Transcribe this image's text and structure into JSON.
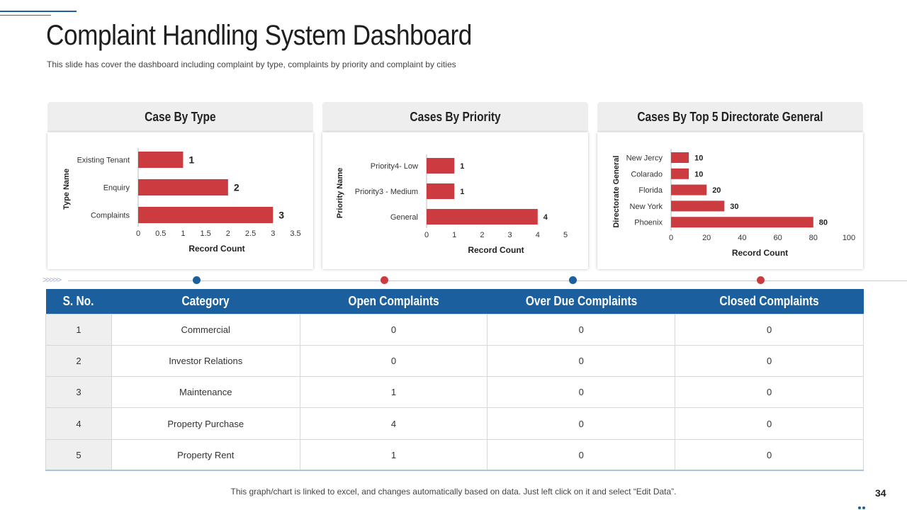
{
  "title": "Complaint Handling System Dashboard",
  "subtitle": "This slide has cover the dashboard including complaint by type, complaints by priority and complaint by cities",
  "colors": {
    "bar": "#cc3b3f",
    "header_blue": "#1b5f9e",
    "dot_blue": "#1b5f9e",
    "dot_red": "#cc3b3f"
  },
  "chart_data": [
    {
      "type": "bar",
      "orientation": "horizontal",
      "title": "Case By Type",
      "ylabel": "Type Name",
      "xlabel": "Record Count",
      "categories": [
        "Existing Tenant",
        "Enquiry",
        "Complaints"
      ],
      "values": [
        1,
        2,
        3
      ],
      "xlim": [
        0,
        3.5
      ],
      "ticks": [
        "0",
        "0.5",
        "1",
        "1.5",
        "2",
        "2.5",
        "3",
        "3.5"
      ]
    },
    {
      "type": "bar",
      "orientation": "horizontal",
      "title": "Cases By Priority",
      "ylabel": "Priority Name",
      "xlabel": "Record Count",
      "categories": [
        "Priority4- Low",
        "Priority3 - Medium",
        "General"
      ],
      "values": [
        1,
        1,
        4
      ],
      "xlim": [
        0,
        5
      ],
      "ticks": [
        "0",
        "1",
        "2",
        "3",
        "4",
        "5"
      ]
    },
    {
      "type": "bar",
      "orientation": "horizontal",
      "title": "Cases By Top 5 Directorate General",
      "ylabel": "Directorate General",
      "xlabel": "Record Count",
      "categories": [
        "New Jercy",
        "Colarado",
        "Florida",
        "New York",
        "Phoenix"
      ],
      "values": [
        10,
        10,
        20,
        30,
        80
      ],
      "xlim": [
        0,
        100
      ],
      "ticks": [
        "0",
        "20",
        "40",
        "60",
        "80",
        "100"
      ]
    }
  ],
  "table": {
    "headers": [
      "S. No.",
      "Category",
      "Open Complaints",
      "Over Due Complaints",
      "Closed Complaints"
    ],
    "rows": [
      [
        "1",
        "Commercial",
        "0",
        "0",
        "0"
      ],
      [
        "2",
        "Investor Relations",
        "0",
        "0",
        "0"
      ],
      [
        "3",
        "Maintenance",
        "1",
        "0",
        "0"
      ],
      [
        "4",
        "Property Purchase",
        "4",
        "0",
        "0"
      ],
      [
        "5",
        "Property Rent",
        "1",
        "0",
        "0"
      ]
    ]
  },
  "timeline_arrows": ">>>>>",
  "footer": "This graph/chart is linked to excel, and changes automatically based on data. Just left click on it and select “Edit Data”.",
  "page_number": "34"
}
